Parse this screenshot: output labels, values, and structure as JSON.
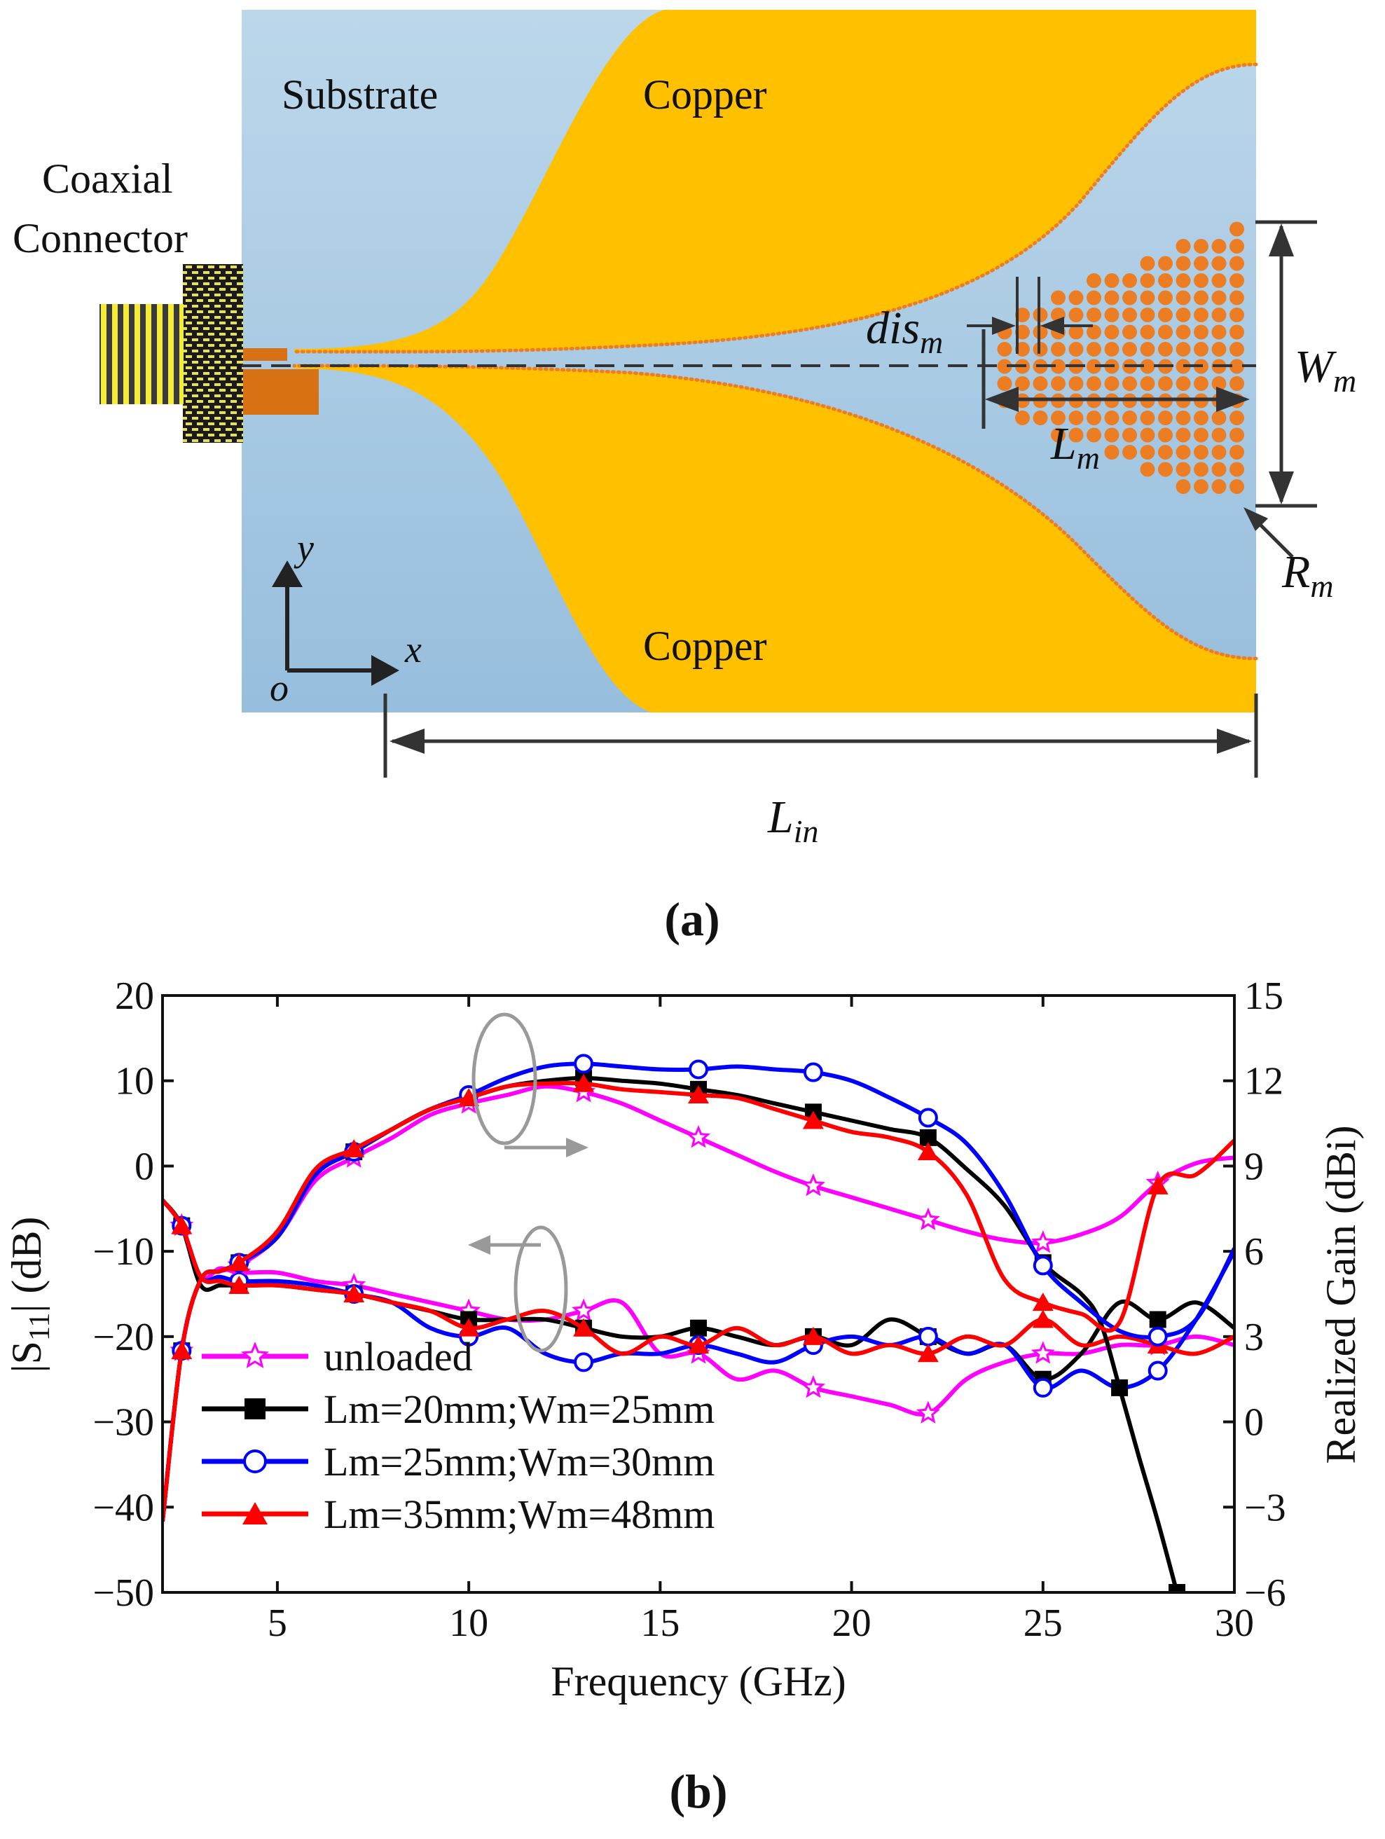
{
  "panel_a": {
    "caption": "(a)",
    "labels": {
      "substrate": "Substrate",
      "copper_top": "Copper",
      "copper_bottom": "Copper",
      "coax_line1": "Coaxial",
      "coax_line2": "Connector",
      "axis_y": "y",
      "axis_x": "x",
      "origin": "o"
    },
    "dims": {
      "dis_main": "dis",
      "dis_sub": "m",
      "L_main": "L",
      "L_sub": "m",
      "W_main": "W",
      "W_sub": "m",
      "R_main": "R",
      "R_sub": "m",
      "Lin_main": "L",
      "Lin_sub": "in"
    },
    "colors": {
      "substrate": "#a9cbe3",
      "copper": "#ffc000",
      "dots": "#ec7d22"
    }
  },
  "panel_b": {
    "caption": "(b)",
    "chart_data": {
      "type": "line",
      "xlabel": "Frequency (GHz)",
      "ylabel_left_main": "|S",
      "ylabel_left_sub": "11",
      "ylabel_left_tail": "| (dB)",
      "ylabel_right": "Realized Gain (dBi)",
      "xlim": [
        2,
        30
      ],
      "ylim_left": [
        -50,
        20
      ],
      "ylim_right": [
        -6,
        15
      ],
      "x_ticks": [
        5,
        10,
        15,
        20,
        25,
        30
      ],
      "y_left_ticks": [
        20,
        10,
        0,
        -10,
        -20,
        -30,
        -40,
        -50
      ],
      "y_left_tick_labels": [
        "20",
        "10",
        "0",
        "−10",
        "−20",
        "−30",
        "−40",
        "−50"
      ],
      "y_right_ticks": [
        15,
        12,
        9,
        6,
        3,
        0,
        -3,
        -6
      ],
      "y_right_tick_labels": [
        "15",
        "12",
        "9",
        "6",
        "3",
        "0",
        "−3",
        "−6"
      ],
      "gain_series": [
        {
          "name": "unloaded",
          "color": "#ff00ff",
          "marker": "star",
          "x": [
            2,
            2.5,
            3,
            3.5,
            4,
            5,
            6,
            7,
            8,
            9,
            10,
            11,
            12,
            13,
            14,
            15,
            16,
            17,
            18,
            19,
            20,
            21,
            22,
            23,
            24,
            25,
            26,
            27,
            28,
            29,
            30
          ],
          "y": [
            -3.5,
            2.5,
            5.0,
            5.3,
            5.5,
            6.5,
            8.5,
            9.3,
            10.0,
            10.8,
            11.2,
            11.5,
            11.8,
            11.6,
            11.2,
            10.6,
            10.0,
            9.4,
            8.8,
            8.3,
            7.9,
            7.5,
            7.1,
            6.7,
            6.4,
            6.3,
            6.6,
            7.2,
            8.4,
            9.1,
            9.3
          ]
        },
        {
          "name": "Lm=20mm;Wm=25mm",
          "color": "#000000",
          "marker": "square",
          "x": [
            2,
            2.5,
            3,
            3.5,
            4,
            5,
            6,
            7,
            8,
            9,
            10,
            11,
            12,
            13,
            14,
            15,
            16,
            17,
            18,
            19,
            20,
            21,
            22,
            23,
            24,
            25,
            26,
            26.5,
            27,
            27.5,
            28,
            28.5
          ],
          "y": [
            -3.5,
            2.5,
            5.0,
            5.3,
            5.6,
            6.5,
            8.7,
            9.5,
            10.3,
            11.0,
            11.4,
            11.8,
            12.0,
            12.1,
            12.0,
            11.9,
            11.7,
            11.5,
            11.2,
            10.9,
            10.6,
            10.3,
            10.0,
            8.9,
            7.6,
            5.6,
            4.5,
            3.5,
            1.2,
            -1.2,
            -3.5,
            -6.0
          ]
        },
        {
          "name": "Lm=25mm;Wm=30mm",
          "color": "#0000ff",
          "marker": "circle",
          "x": [
            2,
            2.5,
            3,
            3.5,
            4,
            5,
            6,
            7,
            8,
            9,
            10,
            11,
            12,
            13,
            14,
            15,
            16,
            17,
            18,
            19,
            20,
            21,
            22,
            23,
            24,
            25,
            26,
            27,
            28,
            29,
            30
          ],
          "y": [
            -3.5,
            2.5,
            5.0,
            5.3,
            5.6,
            6.5,
            8.7,
            9.5,
            10.3,
            11.0,
            11.5,
            12.1,
            12.5,
            12.6,
            12.5,
            12.4,
            12.4,
            12.5,
            12.4,
            12.3,
            12.0,
            11.4,
            10.7,
            9.8,
            8.0,
            5.5,
            4.2,
            3.2,
            3.0,
            3.6,
            6.1
          ]
        },
        {
          "name": "Lm=35mm;Wm=48mm",
          "color": "#ff0000",
          "marker": "triangle",
          "x": [
            2,
            2.5,
            3,
            3.5,
            4,
            5,
            6,
            7,
            8,
            9,
            10,
            11,
            12,
            13,
            14,
            15,
            16,
            17,
            18,
            19,
            20,
            21,
            22,
            23,
            24,
            25,
            26,
            27,
            28,
            29,
            30
          ],
          "y": [
            -3.5,
            2.5,
            5.0,
            5.3,
            5.6,
            6.7,
            8.9,
            9.6,
            10.3,
            11.0,
            11.4,
            11.8,
            11.9,
            11.9,
            11.7,
            11.6,
            11.5,
            11.4,
            11.0,
            10.6,
            10.2,
            10.0,
            9.5,
            8.0,
            5.0,
            4.2,
            3.8,
            3.5,
            8.3,
            8.7,
            9.9
          ]
        }
      ],
      "s11_series": [
        {
          "name": "unloaded",
          "color": "#ff00ff",
          "marker": "star",
          "x": [
            2,
            2.5,
            3,
            3.5,
            4,
            5,
            6,
            7,
            8,
            9,
            10,
            11,
            12,
            13,
            14,
            15,
            16,
            17,
            18,
            19,
            20,
            21,
            22,
            23,
            24,
            25,
            26,
            27,
            28,
            29,
            30
          ],
          "y": [
            -4,
            -7,
            -13,
            -12,
            -12.5,
            -12.5,
            -13.5,
            -14,
            -15,
            -16,
            -17,
            -18,
            -18,
            -17,
            -16,
            -22,
            -22,
            -25,
            -24,
            -26,
            -27,
            -28,
            -29,
            -25,
            -23,
            -22,
            -22,
            -21,
            -21,
            -20,
            -21
          ]
        },
        {
          "name": "Lm=20mm;Wm=25mm",
          "color": "#000000",
          "marker": "square",
          "x": [
            2,
            2.5,
            3,
            3.5,
            4,
            5,
            6,
            7,
            8,
            9,
            10,
            11,
            12,
            13,
            14,
            15,
            16,
            17,
            18,
            19,
            20,
            21,
            22,
            23,
            24,
            25,
            26,
            27,
            28,
            29,
            30
          ],
          "y": [
            -4,
            -7,
            -14,
            -14,
            -14,
            -14,
            -14.5,
            -15,
            -16,
            -17,
            -18,
            -18,
            -18,
            -19,
            -20,
            -20,
            -19,
            -20,
            -21,
            -20,
            -21,
            -18,
            -20,
            -22,
            -21,
            -25,
            -22,
            -16,
            -18,
            -16,
            -19
          ]
        },
        {
          "name": "Lm=25mm;Wm=30mm",
          "color": "#0000ff",
          "marker": "circle",
          "x": [
            2,
            2.5,
            3,
            3.5,
            4,
            5,
            6,
            7,
            8,
            9,
            10,
            11,
            12,
            13,
            14,
            15,
            16,
            17,
            18,
            19,
            20,
            21,
            22,
            23,
            24,
            25,
            26,
            27,
            28,
            29,
            30
          ],
          "y": [
            -4,
            -7,
            -13,
            -13,
            -13.5,
            -13.5,
            -14,
            -15,
            -16,
            -19,
            -20,
            -19,
            -22,
            -23,
            -22,
            -22,
            -21,
            -22,
            -23,
            -21,
            -20,
            -21,
            -20,
            -22,
            -21,
            -26,
            -24,
            -26,
            -24,
            -18,
            -10
          ]
        },
        {
          "name": "Lm=35mm;Wm=48mm",
          "color": "#ff0000",
          "marker": "triangle",
          "x": [
            2,
            2.5,
            3,
            3.5,
            4,
            5,
            6,
            7,
            8,
            9,
            10,
            11,
            12,
            13,
            14,
            15,
            16,
            17,
            18,
            19,
            20,
            21,
            22,
            23,
            24,
            25,
            26,
            27,
            28,
            29,
            30
          ],
          "y": [
            -4,
            -7,
            -13,
            -13.5,
            -14,
            -14,
            -14.5,
            -15,
            -16,
            -17,
            -19,
            -18,
            -17,
            -19,
            -22,
            -20,
            -21,
            -19,
            -21,
            -20,
            -22,
            -21,
            -22,
            -20,
            -21,
            -18,
            -21,
            -20,
            -21,
            -22,
            -20
          ]
        }
      ],
      "legend": [
        {
          "label": "unloaded",
          "color": "#ff00ff",
          "marker": "star"
        },
        {
          "label": "Lm=20mm;Wm=25mm",
          "color": "#000000",
          "marker": "square"
        },
        {
          "label": "Lm=25mm;Wm=30mm",
          "color": "#0000ff",
          "marker": "circle"
        },
        {
          "label": "Lm=35mm;Wm=48mm",
          "color": "#ff0000",
          "marker": "triangle"
        }
      ],
      "legend_position": "bottom-left"
    }
  }
}
